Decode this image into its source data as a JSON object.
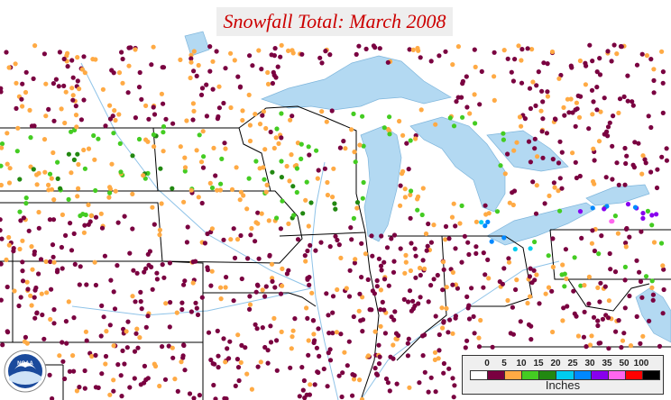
{
  "title": "Snowfall Total: March 2008",
  "legend": {
    "unit": "Inches",
    "ticks": [
      "0",
      "5",
      "10",
      "15",
      "20",
      "25",
      "30",
      "35",
      "50",
      "100"
    ],
    "colors": [
      "#ffffff",
      "#7a0040",
      "#ffaa44",
      "#44cc22",
      "#228811",
      "#00ccee",
      "#0088ff",
      "#8800ee",
      "#ff66ee",
      "#ff0000",
      "#000000"
    ]
  },
  "colors": {
    "water": "#b3d9f2",
    "border": "#000000",
    "river": "#8fc3e8",
    "title_text": "#cc0000"
  },
  "logo": {
    "text": "NOAA"
  }
}
